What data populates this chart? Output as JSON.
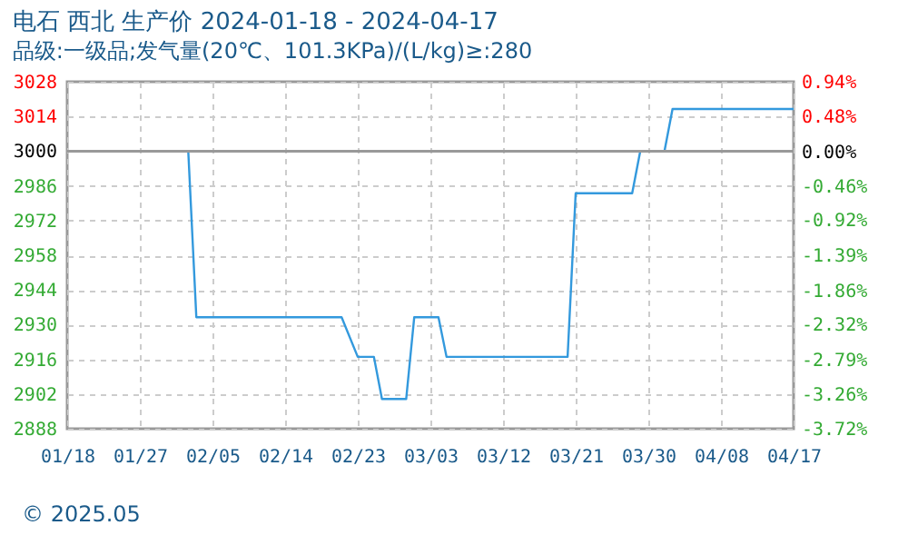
{
  "chart_data": {
    "type": "line",
    "title": "电石 西北 生产价 2024-01-18 - 2024-04-17",
    "subtitle": "品级:一级品;发气量(20℃、101.3KPa)/(L/kg)≥:280",
    "x": [
      "2024-01-18",
      "2024-02-02",
      "2024-02-03",
      "2024-02-21",
      "2024-02-23",
      "2024-02-25",
      "2024-02-26",
      "2024-02-29",
      "2024-03-01",
      "2024-03-04",
      "2024-03-05",
      "2024-03-20",
      "2024-03-21",
      "2024-03-28",
      "2024-03-29",
      "2024-04-01",
      "2024-04-02",
      "2024-04-17"
    ],
    "series": [
      {
        "color": "#3399dd",
        "values": [
          3000,
          3000,
          2933,
          2933,
          2917,
          2917,
          2900,
          2900,
          2933,
          2933,
          2917,
          2917,
          2983,
          2983,
          3000,
          3000,
          3017,
          3017
        ]
      }
    ],
    "xlim": [
      "2024-01-18",
      "2024-04-17"
    ],
    "xticks": [
      {
        "value": "2024-01-18",
        "label": "01/18"
      },
      {
        "value": "2024-01-27",
        "label": "01/27"
      },
      {
        "value": "2024-02-05",
        "label": "02/05"
      },
      {
        "value": "2024-02-14",
        "label": "02/14"
      },
      {
        "value": "2024-02-23",
        "label": "02/23"
      },
      {
        "value": "2024-03-03",
        "label": "03/03"
      },
      {
        "value": "2024-03-12",
        "label": "03/12"
      },
      {
        "value": "2024-03-21",
        "label": "03/21"
      },
      {
        "value": "2024-03-30",
        "label": "03/30"
      },
      {
        "value": "2024-04-08",
        "label": "04/08"
      },
      {
        "value": "2024-04-17",
        "label": "04/17"
      }
    ],
    "ylim": [
      2888,
      3028
    ],
    "yticks": [
      2888,
      2902,
      2916,
      2930,
      2944,
      2958,
      2972,
      2986,
      3000,
      3014,
      3028
    ],
    "y2lim": [
      -3.72,
      0.94
    ],
    "y2ticks": [
      {
        "value": -3.72,
        "label": "-3.72%"
      },
      {
        "value": -3.26,
        "label": "-3.26%"
      },
      {
        "value": -2.79,
        "label": "-2.79%"
      },
      {
        "value": -2.32,
        "label": "-2.32%"
      },
      {
        "value": -1.86,
        "label": "-1.86%"
      },
      {
        "value": -1.39,
        "label": "-1.39%"
      },
      {
        "value": -0.92,
        "label": "-0.92%"
      },
      {
        "value": -0.46,
        "label": "-0.46%"
      },
      {
        "value": 0,
        "label": "0.00%"
      },
      {
        "value": 0.48,
        "label": "0.48%"
      },
      {
        "value": 0.94,
        "label": "0.94%"
      }
    ],
    "ref_lines": [
      {
        "axis": "y",
        "value": 3000,
        "color": "#999999"
      }
    ],
    "grid": true,
    "line_style": "solid",
    "marker": "none",
    "annotations": [
      "© 2025.05"
    ]
  }
}
